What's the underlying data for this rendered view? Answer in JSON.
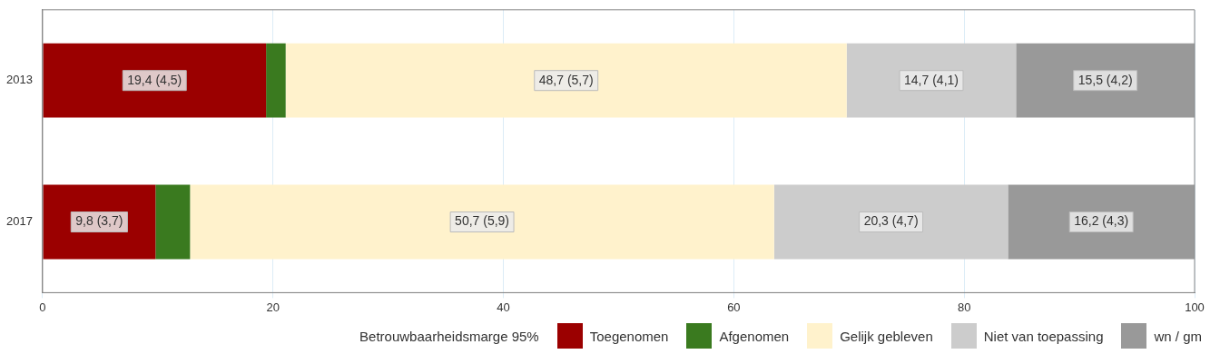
{
  "chart_data": {
    "type": "bar",
    "orientation": "horizontal",
    "stacked": true,
    "categories": [
      "2013",
      "2017"
    ],
    "series": [
      {
        "name": "Toegenomen",
        "color": "#9b0000",
        "values": [
          19.4,
          9.8
        ],
        "value_labels": [
          "19,4 (4,5)",
          "9,8 (3,7)"
        ]
      },
      {
        "name": "Afgenomen",
        "color": "#3a7a1f",
        "values": [
          1.7,
          3.0
        ]
      },
      {
        "name": "Gelijk gebleven",
        "color": "#fff2cc",
        "values": [
          48.7,
          50.7
        ],
        "value_labels": [
          "48,7 (5,7)",
          "50,7 (5,9)"
        ]
      },
      {
        "name": "Niet van toepassing",
        "color": "#cccccc",
        "values": [
          14.7,
          20.3
        ],
        "value_labels": [
          "14,7 (4,1)",
          "20,3 (4,7)"
        ]
      },
      {
        "name": "wn / gm",
        "color": "#999999",
        "values": [
          15.5,
          16.2
        ],
        "value_labels": [
          "15,5 (4,2)",
          "16,2 (4,3)"
        ]
      }
    ],
    "xlim": [
      0,
      100
    ],
    "xticks": [
      0,
      20,
      40,
      60,
      80,
      100
    ],
    "grid": "x",
    "legend": "bottom right",
    "legend_title": "Betrouwbaarheidsmarge 95%"
  }
}
